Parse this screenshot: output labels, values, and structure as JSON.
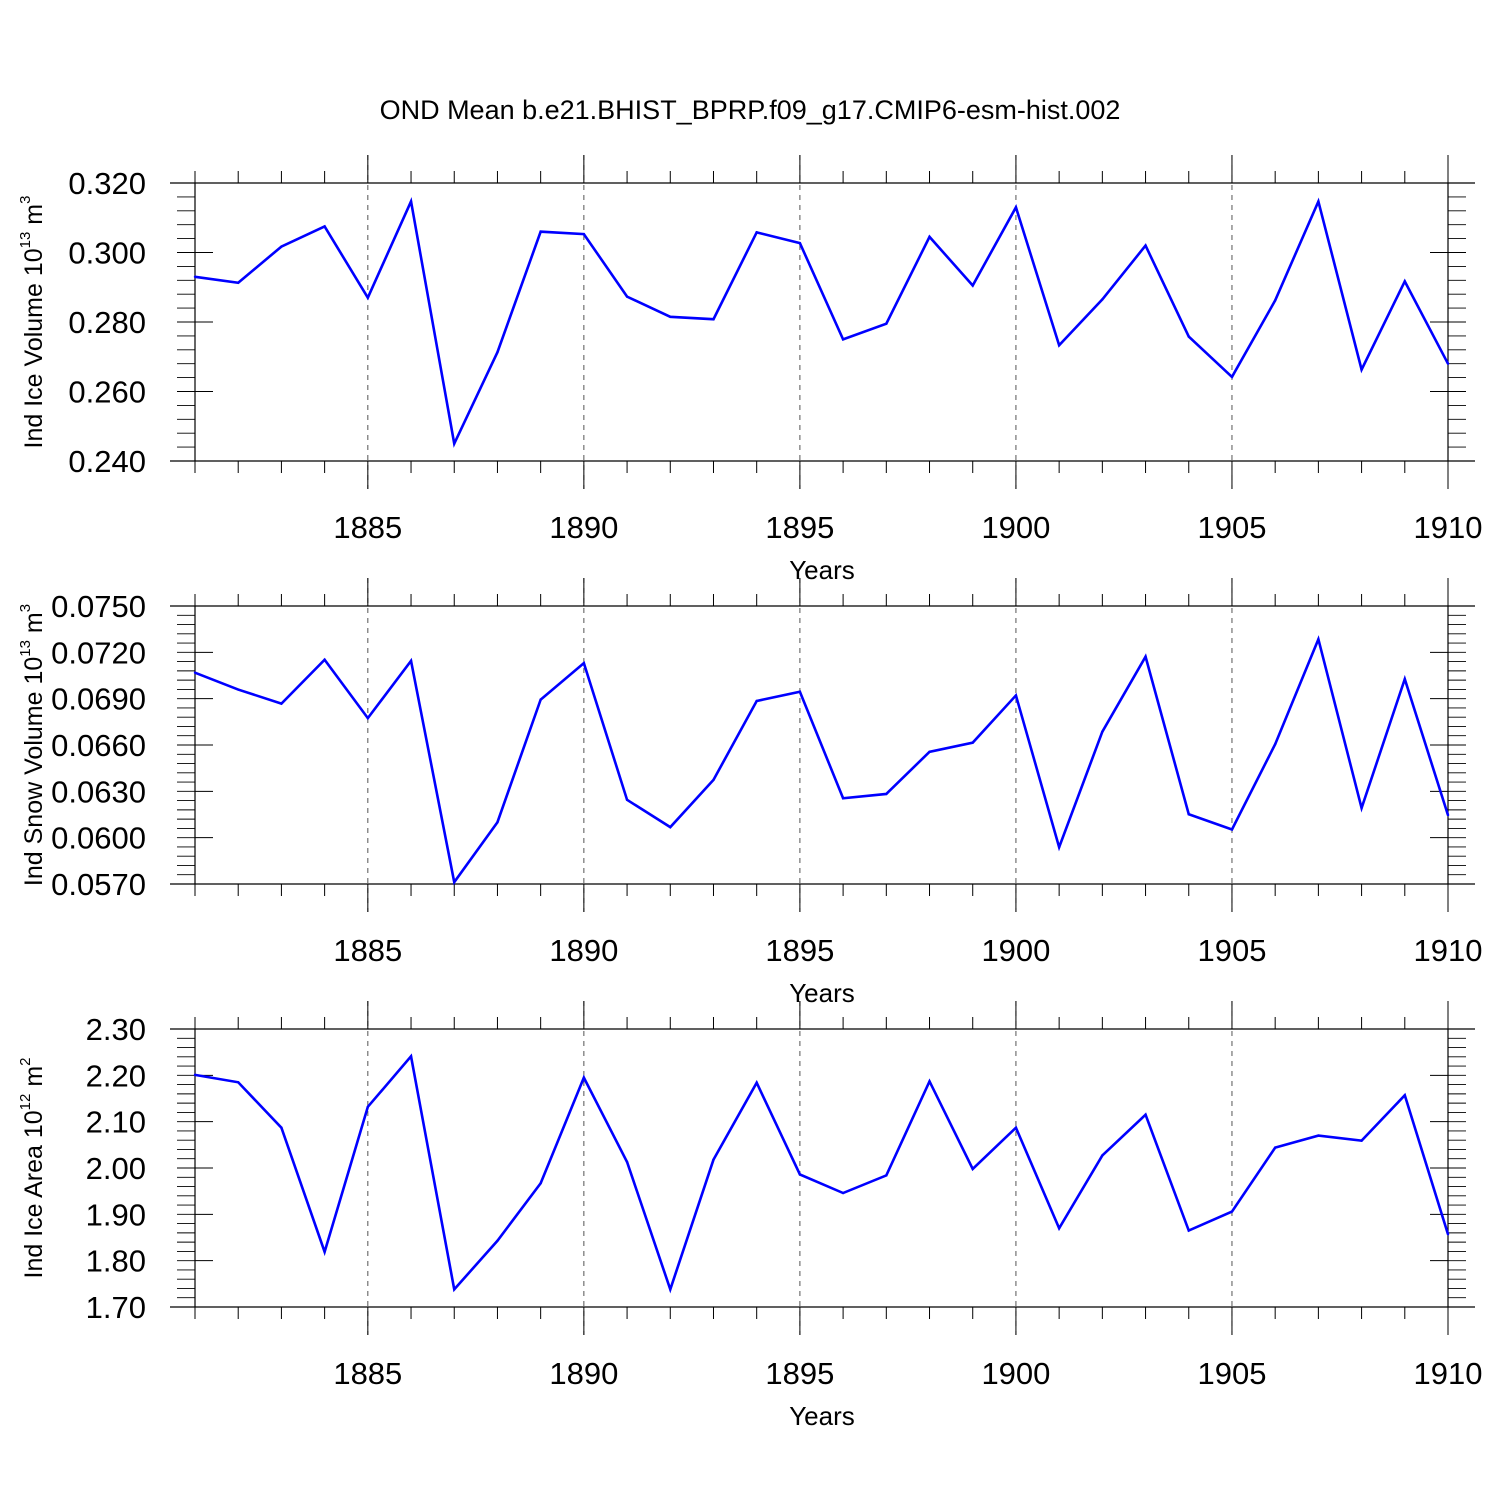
{
  "title": "OND Mean b.e21.BHIST_BPRP.f09_g17.CMIP6-esm-hist.002",
  "colors": {
    "line": "#0000ff",
    "axis": "#000000",
    "grid": "#555555"
  },
  "chart_data": [
    {
      "type": "line",
      "ylabel_main": "Ind Ice Volume 10",
      "ylabel_exp": "13",
      "ylabel_unit": " m",
      "ylabel_unit_exp": "3",
      "xlabel": "Years",
      "xlim": [
        1881,
        1910
      ],
      "ylim": [
        0.24,
        0.32
      ],
      "yticks": [
        "0.320",
        "0.300",
        "0.280",
        "0.260",
        "0.240"
      ],
      "ytick_values": [
        0.32,
        0.3,
        0.28,
        0.26,
        0.24
      ],
      "xticks": [
        "1885",
        "1890",
        "1895",
        "1900",
        "1905",
        "1910"
      ],
      "xtick_values": [
        1885,
        1890,
        1895,
        1900,
        1905,
        1910
      ],
      "grid_x": [
        1885,
        1890,
        1895,
        1900,
        1905
      ],
      "x": [
        1881,
        1882,
        1883,
        1884,
        1885,
        1886,
        1887,
        1888,
        1889,
        1890,
        1891,
        1892,
        1893,
        1894,
        1895,
        1896,
        1897,
        1898,
        1899,
        1900,
        1901,
        1902,
        1903,
        1904,
        1905,
        1906,
        1907,
        1908,
        1909,
        1910
      ],
      "values": [
        0.293,
        0.2913,
        0.3017,
        0.3075,
        0.287,
        0.3147,
        0.245,
        0.2713,
        0.306,
        0.3053,
        0.2873,
        0.2815,
        0.2808,
        0.3058,
        0.3027,
        0.275,
        0.2795,
        0.3045,
        0.2905,
        0.313,
        0.2733,
        0.2865,
        0.302,
        0.2758,
        0.2642,
        0.2862,
        0.3147,
        0.2663,
        0.2917,
        0.268
      ]
    },
    {
      "type": "line",
      "ylabel_main": "Ind Snow Volume 10",
      "ylabel_exp": "13",
      "ylabel_unit": " m",
      "ylabel_unit_exp": "3",
      "xlabel": "Years",
      "xlim": [
        1881,
        1910
      ],
      "ylim": [
        0.057,
        0.075
      ],
      "yticks": [
        "0.0750",
        "0.0720",
        "0.0690",
        "0.0660",
        "0.0630",
        "0.0600",
        "0.0570"
      ],
      "ytick_values": [
        0.075,
        0.072,
        0.069,
        0.066,
        0.063,
        0.06,
        0.057
      ],
      "xticks": [
        "1885",
        "1890",
        "1895",
        "1900",
        "1905",
        "1910"
      ],
      "xtick_values": [
        1885,
        1890,
        1895,
        1900,
        1905,
        1910
      ],
      "grid_x": [
        1885,
        1890,
        1895,
        1900,
        1905
      ],
      "x": [
        1881,
        1882,
        1883,
        1884,
        1885,
        1886,
        1887,
        1888,
        1889,
        1890,
        1891,
        1892,
        1893,
        1894,
        1895,
        1896,
        1897,
        1898,
        1899,
        1900,
        1901,
        1902,
        1903,
        1904,
        1905,
        1906,
        1907,
        1908,
        1909,
        1910
      ],
      "values": [
        0.07068,
        0.06959,
        0.06868,
        0.07152,
        0.06774,
        0.07145,
        0.05712,
        0.061,
        0.06894,
        0.0713,
        0.06245,
        0.06068,
        0.06374,
        0.06885,
        0.06945,
        0.06255,
        0.06283,
        0.06556,
        0.06615,
        0.06921,
        0.05938,
        0.06686,
        0.07172,
        0.06152,
        0.06053,
        0.06605,
        0.07285,
        0.06192,
        0.07027,
        0.06146
      ]
    },
    {
      "type": "line",
      "ylabel_main": "Ind Ice Area 10",
      "ylabel_exp": "12",
      "ylabel_unit": " m",
      "ylabel_unit_exp": "2",
      "xlabel": "Years",
      "xlim": [
        1881,
        1910
      ],
      "ylim": [
        1.7,
        2.3
      ],
      "yticks": [
        "2.30",
        "2.20",
        "2.10",
        "2.00",
        "1.90",
        "1.80",
        "1.70"
      ],
      "ytick_values": [
        2.3,
        2.2,
        2.1,
        2.0,
        1.9,
        1.8,
        1.7
      ],
      "xticks": [
        "1885",
        "1890",
        "1895",
        "1900",
        "1905",
        "1910"
      ],
      "xtick_values": [
        1885,
        1890,
        1895,
        1900,
        1905,
        1910
      ],
      "grid_x": [
        1885,
        1890,
        1895,
        1900,
        1905
      ],
      "x": [
        1881,
        1882,
        1883,
        1884,
        1885,
        1886,
        1887,
        1888,
        1889,
        1890,
        1891,
        1892,
        1893,
        1894,
        1895,
        1896,
        1897,
        1898,
        1899,
        1900,
        1901,
        1902,
        1903,
        1904,
        1905,
        1906,
        1907,
        1908,
        1909,
        1910
      ],
      "values": [
        2.201,
        2.185,
        2.087,
        1.819,
        2.132,
        2.241,
        1.738,
        1.843,
        1.967,
        2.195,
        2.013,
        1.738,
        2.018,
        2.184,
        1.986,
        1.946,
        1.984,
        2.187,
        1.998,
        2.087,
        1.87,
        2.027,
        2.115,
        1.865,
        1.906,
        2.044,
        2.07,
        2.059,
        2.157,
        1.857
      ]
    }
  ]
}
